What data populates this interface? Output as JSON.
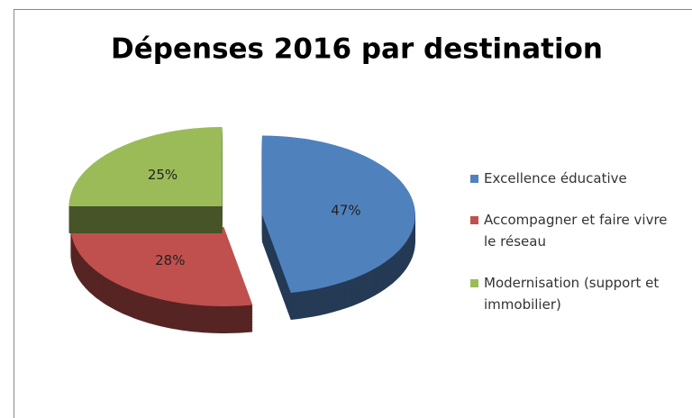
{
  "chart_data": {
    "type": "pie",
    "title": "Dépenses 2016 par destination",
    "categories": [
      "Excellence éducative",
      "Accompagner et faire vivre le réseau",
      "Modernisation (support et immobilier)"
    ],
    "values": [
      47,
      28,
      25
    ],
    "value_labels": [
      "47%",
      "28%",
      "25%"
    ],
    "colors": [
      "#4f81bd",
      "#c0504d",
      "#9bbb59"
    ],
    "legend": "right"
  }
}
